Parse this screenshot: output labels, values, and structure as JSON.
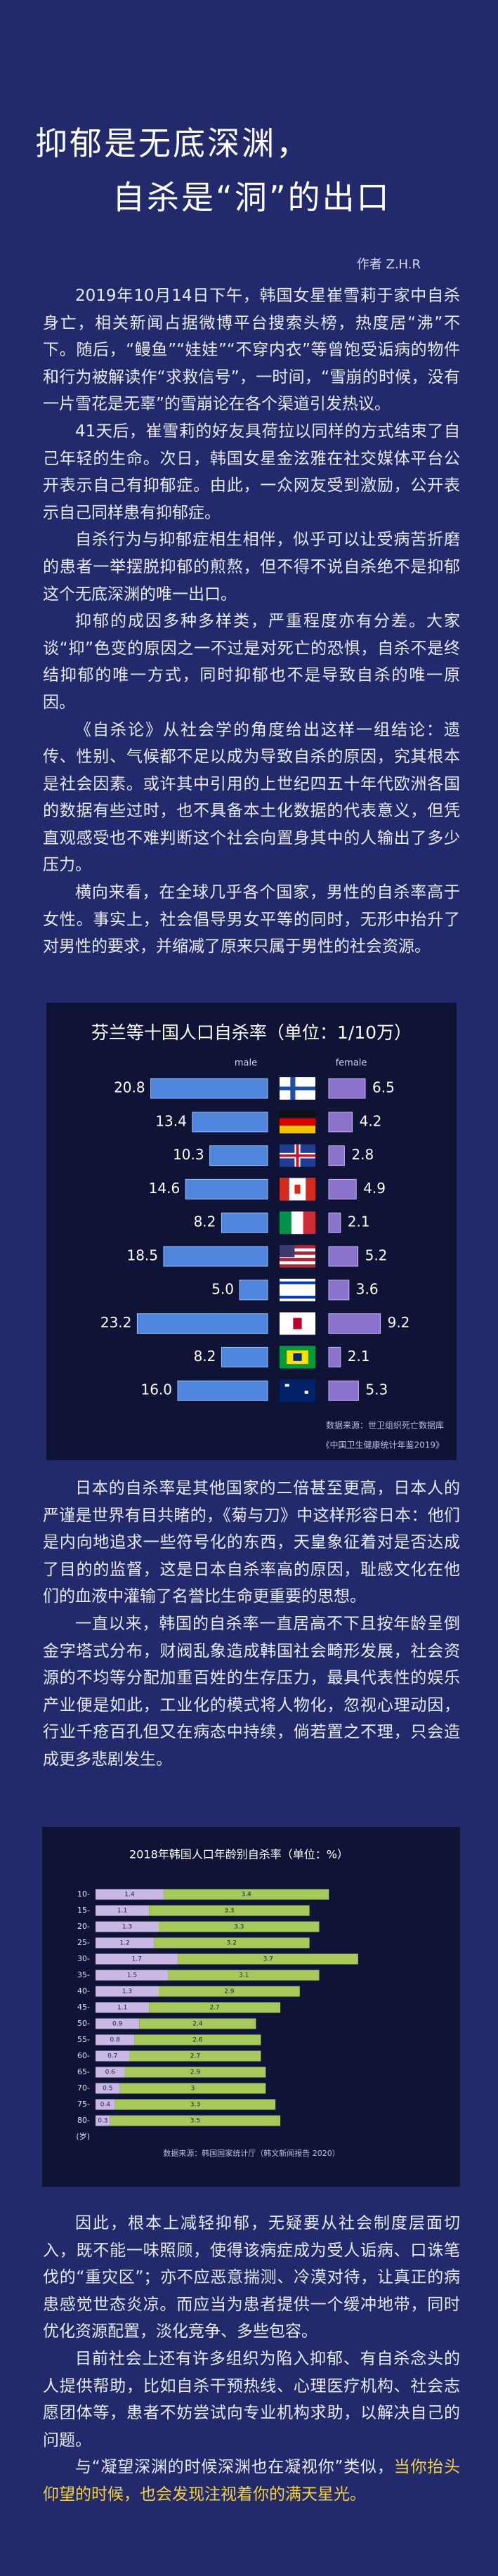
{
  "title_lines": [
    "抑郁是无底深渊，",
    "自杀是“洞”的出口"
  ],
  "author": "作者  Z.H.R",
  "paragraphs_a": [
    "2019年10月14日下午，韩国女星崔雪莉于家中自杀身亡，相关新闻占据微博平台搜索头榜，热度居“沸”不下。随后，“鳗鱼”“娃娃”“不穿内衣”等曾饱受诟病的物件和行为被解读作“求救信号”，一时间，“雪崩的时候，没有一片雪花是无辜”的雪崩论在各个渠道引发热议。",
    "41天后，崔雪莉的好友具荷拉以同样的方式结束了自己年轻的生命。次日，韩国女星金泫雅在社交媒体平台公开表示自己有抑郁症。由此，一众网友受到激励，公开表示自己同样患有抑郁症。",
    "自杀行为与抑郁症相生相伴，似乎可以让受病苦折磨的患者一举摆脱抑郁的煎熬，但不得不说自杀绝不是抑郁这个无底深渊的唯一出口。",
    "抑郁的成因多种多样类，严重程度亦有分差。大家谈“抑”色变的原因之一不过是对死亡的恐惧，自杀不是终结抑郁的唯一方式，同时抑郁也不是导致自杀的唯一原因。",
    "《自杀论》从社会学的角度给出这样一组结论：遗传、性别、气候都不足以成为导致自杀的原因，究其根本是社会因素。或许其中引用的上世纪四五十年代欧洲各国的数据有些过时，也不具备本土化数据的代表意义，但凭直观感受也不难判断这个社会向置身其中的人输出了多少压力。",
    "横向来看，在全球几乎各个国家，男性的自杀率高于女性。事实上，社会倡导男女平等的同时，无形中抬升了对男性的要求，并缩减了原来只属于男性的社会资源。"
  ],
  "paragraphs_b": [
    "日本的自杀率是其他国家的二倍甚至更高，日本人的严谨是世界有目共睹的，《菊与刀》中这样形容日本：他们是内向地追求一些符号化的东西，天皇象征着对是否达成了目的的监督，这是日本自杀率高的原因，耻感文化在他们的血液中灌输了名誉比生命更重要的思想。",
    "一直以来，韩国的自杀率一直居高不下且按年龄呈倒金字塔式分布，财阀乱象造成韩国社会畸形发展，社会资源的不均等分配加重百姓的生存压力，最具代表性的娱乐产业便是如此，工业化的模式将人物化，忽视心理动因，行业千疮百孔但又在病态中持续，倘若置之不理，只会造成更多悲剧发生。"
  ],
  "paragraphs_c": [
    "因此，根本上减轻抑郁，无疑要从社会制度层面切入，既不能一味照顾，使得该病症成为受人诟病、口诛笔伐的“重灾区”；亦不应恶意揣测、冷漠对待，让真正的病患感觉世态炎凉。而应当为患者提供一个缓冲地带，同时优化资源配置，淡化竞争、多些包容。",
    "目前社会上还有许多组织为陷入抑郁、有自杀念头的人提供帮助，比如自杀干预热线、心理医疗机构、社会志愿团体等，患者不妨尝试向专业机构求助，以解决自己的问题。"
  ],
  "closing": {
    "text": "与“凝望深渊的时候深渊也在凝视你”类似，",
    "highlight": "当你抬头仰望的时候，也会发现注视着你的满天星光。"
  },
  "chart_data": [
    {
      "type": "mirror_bar",
      "title": "芬兰等十国人口自杀率（单位：1/10万）",
      "xlim": [
        0,
        25
      ],
      "series": [
        {
          "name": "male",
          "color": "#4d86dc",
          "values": [
            20.8,
            13.4,
            10.3,
            14.6,
            8.2,
            18.5,
            5.0,
            23.2,
            8.2,
            16.0
          ],
          "value_labels": [
            "20.8",
            "13.4",
            "10.3",
            "14.6",
            "8.2",
            "18.5",
            "5.0",
            "23.2",
            "8.2",
            "16.0"
          ]
        },
        {
          "name": "female",
          "color": "#8b72cc",
          "values": [
            6.5,
            4.2,
            2.8,
            4.9,
            2.1,
            5.2,
            3.6,
            9.2,
            2.1,
            5.3
          ],
          "value_labels": [
            "6.5",
            "4.2",
            "2.8",
            "4.9",
            "2.1",
            "5.2",
            "3.6",
            "9.2",
            "2.1",
            "5.3"
          ]
        }
      ],
      "source": [
        "数据来源：世卫组织死亡数据库",
        "《中国卫生健康统计年鉴2019》"
      ]
    },
    {
      "type": "stacked_bar",
      "title": "2018年韩国人口年龄别自杀率（单位：%）",
      "categories": [
        "10-",
        "15-",
        "20-",
        "25-",
        "30-",
        "35-",
        "40-",
        "45-",
        "50-",
        "55-",
        "60-",
        "65-",
        "70-",
        "75-",
        "80-"
      ],
      "axis_unit": "(岁)",
      "xlim": [
        0,
        5.2
      ],
      "series": [
        {
          "name": "female",
          "color": "#c9b8e6",
          "values": [
            1.4,
            1.1,
            1.3,
            1.2,
            1.7,
            1.5,
            1.3,
            1.1,
            0.9,
            0.8,
            0.7,
            0.6,
            0.5,
            0.4,
            0.3
          ]
        },
        {
          "name": "male",
          "color": "#a7c95a",
          "values": [
            3.4,
            3.3,
            3.3,
            3.2,
            3.7,
            3.1,
            2.9,
            2.7,
            2.4,
            2.6,
            2.7,
            2.9,
            3.0,
            3.3,
            3.5
          ]
        }
      ],
      "source": "数据来源：韩国国家统计厅（韩文新闻报告 2020）"
    }
  ]
}
